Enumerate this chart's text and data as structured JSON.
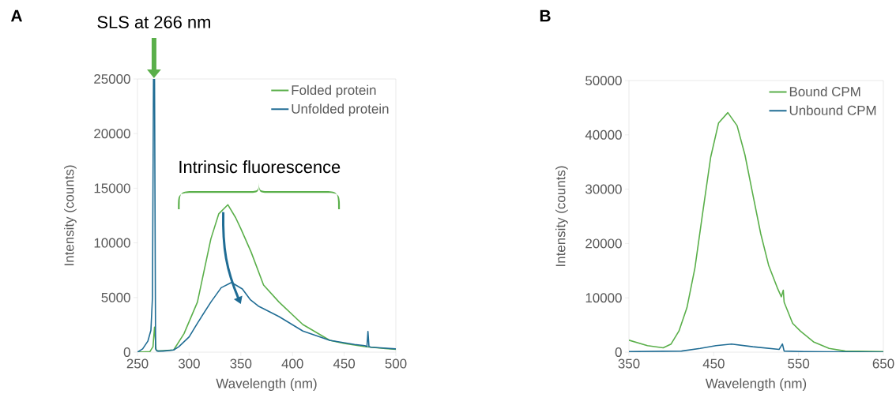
{
  "chart_data": [
    {
      "type": "line",
      "title": "A",
      "xlabel": "Wavelength (nm)",
      "ylabel": "Intensity (counts)",
      "xlim": [
        250,
        500
      ],
      "ylim": [
        0,
        25000
      ],
      "xticks": [
        250,
        300,
        350,
        400,
        450,
        500
      ],
      "yticks": [
        0,
        5000,
        10000,
        15000,
        20000,
        25000
      ],
      "legend": "top right",
      "annotations": [
        {
          "text": "SLS at 266 nm",
          "x": 266,
          "y": 25000
        },
        "Intrinsic fluorescence"
      ],
      "series": [
        {
          "name": "Folded protein",
          "color": "#5aaf4a",
          "x": [
            250,
            262,
            265,
            266.5,
            268,
            270,
            285,
            295,
            308,
            321,
            328.6,
            337.5,
            345,
            350,
            360,
            372,
            387,
            410,
            436,
            450,
            470,
            490,
            500
          ],
          "values": [
            0,
            50,
            500,
            2290,
            200,
            100,
            200,
            1690,
            4580,
            10360,
            12650,
            13490,
            12300,
            11300,
            9150,
            6140,
            4580,
            2530,
            1080,
            800,
            500,
            330,
            250
          ]
        },
        {
          "name": "Unfolded protein",
          "color": "#1f6c94",
          "x": [
            250,
            255,
            260,
            263,
            264.5,
            265.5,
            266.5,
            267.5,
            269,
            275,
            285,
            290,
            300,
            308,
            321,
            331,
            341,
            351.5,
            359,
            367,
            372,
            387,
            410,
            436,
            460,
            470,
            472,
            473,
            474,
            476,
            485,
            500
          ],
          "values": [
            0,
            300,
            1000,
            2000,
            5000,
            25000,
            25000,
            300,
            100,
            100,
            200,
            500,
            1400,
            2650,
            4580,
            5900,
            6380,
            5780,
            4820,
            4210,
            3970,
            3250,
            1930,
            1080,
            700,
            600,
            500,
            1900,
            500,
            450,
            400,
            300
          ]
        }
      ]
    },
    {
      "type": "line",
      "title": "B",
      "xlabel": "Wavelength (nm)",
      "ylabel": "Intensity (counts)",
      "xlim": [
        350,
        650
      ],
      "ylim": [
        0,
        50000
      ],
      "xticks": [
        350,
        450,
        550,
        650
      ],
      "yticks": [
        0,
        10000,
        20000,
        30000,
        40000,
        50000
      ],
      "legend": "top right",
      "series": [
        {
          "name": "Bound CPM",
          "color": "#5aaf4a",
          "x": [
            350,
            371.8,
            390.4,
            399.7,
            409,
            418.4,
            427.8,
            437,
            446.4,
            455.7,
            466.6,
            477.5,
            486.8,
            496,
            505.4,
            514.7,
            525.6,
            529.7,
            532,
            533,
            543,
            552,
            567.6,
            586,
            605,
            650
          ],
          "values": [
            2200,
            1200,
            800,
            1500,
            3900,
            8200,
            15500,
            25700,
            35900,
            42200,
            44100,
            41700,
            36300,
            29100,
            21800,
            16000,
            11600,
            10200,
            11400,
            9200,
            5300,
            3900,
            1900,
            700,
            200,
            100
          ]
        },
        {
          "name": "Unbound CPM",
          "color": "#1f6c94",
          "x": [
            350,
            412,
            434,
            452.6,
            471,
            496,
            527,
            531,
            533,
            558,
            650
          ],
          "values": [
            100,
            200,
            700,
            1200,
            1500,
            1000,
            500,
            1500,
            200,
            100,
            0
          ]
        }
      ]
    }
  ]
}
